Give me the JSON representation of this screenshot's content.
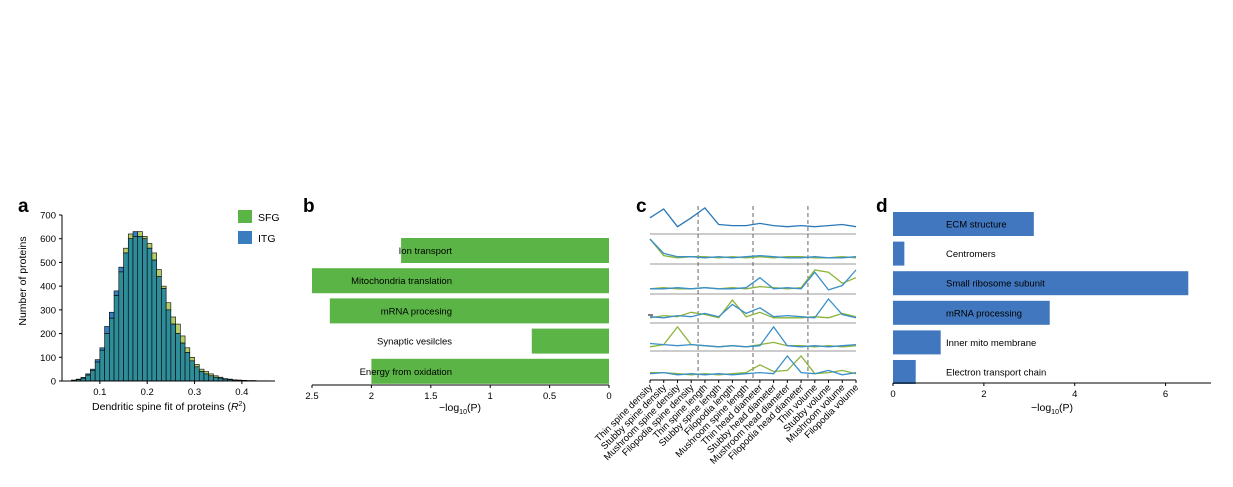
{
  "colors": {
    "sfg": "#5bb546",
    "itg": "#3a7dbf",
    "hist_overlap": "#2f8c99",
    "hist_sfg_only": "#b5cc6a",
    "bar_b": "#5bb546",
    "bar_d": "#4077be",
    "line_sfg": "#8ab33a",
    "line_itg": "#3a8fc9",
    "line_single": "#2a78b8"
  },
  "panels": {
    "a": "a",
    "b": "b",
    "c": "c",
    "d": "d"
  },
  "chart_data": [
    {
      "panel": "a",
      "type": "bar",
      "xlabel": "Dendritic spine fit of proteins (",
      "xlabel_r": "R",
      "xlabel_sup": "2",
      "xlabel_close": ")",
      "ylabel": "Number of proteins",
      "xlim": [
        0.02,
        0.47
      ],
      "ylim": [
        0,
        700
      ],
      "xticks": [
        0.1,
        0.2,
        0.3,
        0.4
      ],
      "xtick_labels": [
        "0.1",
        "0.2",
        "0.3",
        "0.4"
      ],
      "yticks": [
        0,
        100,
        200,
        300,
        400,
        500,
        600,
        700
      ],
      "ytick_labels": [
        "0",
        "100",
        "200",
        "300",
        "400",
        "500",
        "600",
        "700"
      ],
      "legend": {
        "position": "top-right",
        "entries": [
          "SFG",
          "ITG"
        ]
      },
      "bin_width": 0.01,
      "bin_starts": [
        0.04,
        0.05,
        0.06,
        0.07,
        0.08,
        0.09,
        0.1,
        0.11,
        0.12,
        0.13,
        0.14,
        0.15,
        0.16,
        0.17,
        0.18,
        0.19,
        0.2,
        0.21,
        0.22,
        0.23,
        0.24,
        0.25,
        0.26,
        0.27,
        0.28,
        0.29,
        0.3,
        0.31,
        0.32,
        0.33,
        0.34,
        0.35,
        0.36,
        0.37,
        0.38,
        0.39,
        0.4,
        0.41,
        0.42,
        0.43,
        0.44,
        0.45
      ],
      "series": [
        {
          "name": "SFG",
          "values": [
            3,
            6,
            12,
            25,
            45,
            80,
            130,
            200,
            265,
            360,
            460,
            560,
            620,
            610,
            630,
            610,
            580,
            540,
            470,
            400,
            330,
            270,
            240,
            190,
            140,
            100,
            70,
            50,
            40,
            30,
            22,
            16,
            10,
            8,
            5,
            4,
            3,
            2,
            2,
            1,
            1,
            0
          ]
        },
        {
          "name": "ITG",
          "values": [
            4,
            8,
            15,
            30,
            50,
            90,
            140,
            230,
            290,
            380,
            480,
            540,
            600,
            630,
            610,
            600,
            560,
            510,
            440,
            390,
            300,
            240,
            200,
            160,
            120,
            85,
            60,
            40,
            30,
            22,
            16,
            12,
            8,
            6,
            4,
            3,
            2,
            2,
            1,
            1,
            1,
            1
          ]
        }
      ]
    },
    {
      "panel": "b",
      "type": "bar",
      "orientation": "horizontal",
      "xlabel": "−log",
      "xlabel_sub": "10",
      "xlabel_tail": "(P)",
      "xlim": [
        2.5,
        0
      ],
      "xticks": [
        2.5,
        2,
        1.5,
        1,
        0.5,
        0
      ],
      "xtick_labels": [
        "2.5",
        "2",
        "1.5",
        "1",
        "0.5",
        "0"
      ],
      "categories": [
        "Ion transport",
        "Mitochondria translation",
        "mRNA procesing",
        "Synaptic vesilcles",
        "Energy from oxidation"
      ],
      "values": [
        1.75,
        2.5,
        2.35,
        0.65,
        2.0
      ]
    },
    {
      "panel": "c",
      "type": "line",
      "categories": [
        "Thin spine density",
        "Stubby spine density",
        "Mushroom spine density",
        "Filopodia spine density",
        "Thin spine length",
        "Stubby spine length",
        "Filopodia length",
        "Mushroom spine length",
        "Thin head diameter",
        "Stubby head diameter",
        "Mushroom head diameter",
        "Filopodia head diameter",
        "Thin volume",
        "Stubby volume",
        "Mushroom volume",
        "Filopodia volume"
      ],
      "group_dividers_after": [
        3,
        7,
        11
      ],
      "rows": [
        {
          "series": [
            {
              "name": "",
              "values": [
                0.55,
                0.95,
                0.15,
                0.55,
                1.0,
                0.25,
                0.2,
                0.2,
                0.3,
                0.2,
                0.15,
                0.2,
                0.15,
                0.2,
                0.25,
                0.15
              ]
            }
          ]
        },
        {
          "series": [
            {
              "name": "SFG",
              "values": [
                0.95,
                0.2,
                0.1,
                0.15,
                0.15,
                0.1,
                0.15,
                0.1,
                0.15,
                0.1,
                0.15,
                0.15,
                0.1,
                0.1,
                0.15,
                0.1
              ]
            },
            {
              "name": "ITG",
              "values": [
                0.95,
                0.3,
                0.15,
                0.15,
                0.1,
                0.15,
                0.1,
                0.15,
                0.2,
                0.15,
                0.1,
                0.1,
                0.15,
                0.1,
                0.1,
                0.15
              ]
            }
          ]
        },
        {
          "series": [
            {
              "name": "SFG",
              "values": [
                0.1,
                0.15,
                0.1,
                0.1,
                0.15,
                0.1,
                0.15,
                0.1,
                0.2,
                0.15,
                0.1,
                0.15,
                0.95,
                0.85,
                0.35,
                0.6
              ]
            },
            {
              "name": "ITG",
              "values": [
                0.1,
                0.1,
                0.15,
                0.1,
                0.15,
                0.1,
                0.1,
                0.15,
                0.6,
                0.1,
                0.15,
                0.1,
                0.85,
                0.05,
                0.25,
                0.95
              ]
            }
          ]
        },
        {
          "series": [
            {
              "name": "SFG",
              "values": [
                0.1,
                0.2,
                0.15,
                0.35,
                0.25,
                0.1,
                0.9,
                0.15,
                0.35,
                0.1,
                0.1,
                0.1,
                0.15,
                0.1,
                0.3,
                0.15
              ]
            },
            {
              "name": "ITG",
              "values": [
                0.15,
                0.1,
                0.2,
                0.15,
                0.3,
                0.15,
                0.7,
                0.3,
                0.55,
                0.15,
                0.2,
                0.15,
                0.1,
                0.95,
                0.25,
                0.1
              ]
            }
          ]
        },
        {
          "series": [
            {
              "name": "SFG",
              "values": [
                0.1,
                0.2,
                1.0,
                0.2,
                0.15,
                0.1,
                0.15,
                0.1,
                0.2,
                0.3,
                0.15,
                0.15,
                0.1,
                0.15,
                0.1,
                0.15
              ]
            },
            {
              "name": "ITG",
              "values": [
                0.25,
                0.2,
                0.15,
                0.2,
                0.15,
                0.1,
                0.15,
                0.1,
                0.15,
                1.0,
                0.15,
                0.1,
                0.15,
                0.1,
                0.15,
                0.2
              ]
            }
          ]
        },
        {
          "series": [
            {
              "name": "SFG",
              "values": [
                0.2,
                0.2,
                0.15,
                0.1,
                0.15,
                0.1,
                0.15,
                0.2,
                0.55,
                0.25,
                0.3,
                0.95,
                0.15,
                0.2,
                0.3,
                0.15
              ]
            },
            {
              "name": "ITG",
              "values": [
                0.15,
                0.2,
                0.1,
                0.15,
                0.1,
                0.15,
                0.1,
                0.15,
                0.2,
                0.15,
                0.95,
                0.2,
                0.15,
                0.3,
                0.1,
                0.2
              ]
            }
          ]
        }
      ]
    },
    {
      "panel": "d",
      "type": "bar",
      "orientation": "horizontal",
      "xlabel": "−log",
      "xlabel_sub": "10",
      "xlabel_tail": "(P)",
      "xlim": [
        0,
        7
      ],
      "xticks": [
        0,
        2,
        4,
        6
      ],
      "xtick_labels": [
        "0",
        "2",
        "4",
        "6"
      ],
      "categories": [
        "ECM structure",
        "Centromers",
        "Small ribosome subunit",
        "mRNA processing",
        "Inner mito membrane",
        "Electron transport chain"
      ],
      "values": [
        3.1,
        0.25,
        6.5,
        3.45,
        1.05,
        0.5
      ]
    }
  ]
}
